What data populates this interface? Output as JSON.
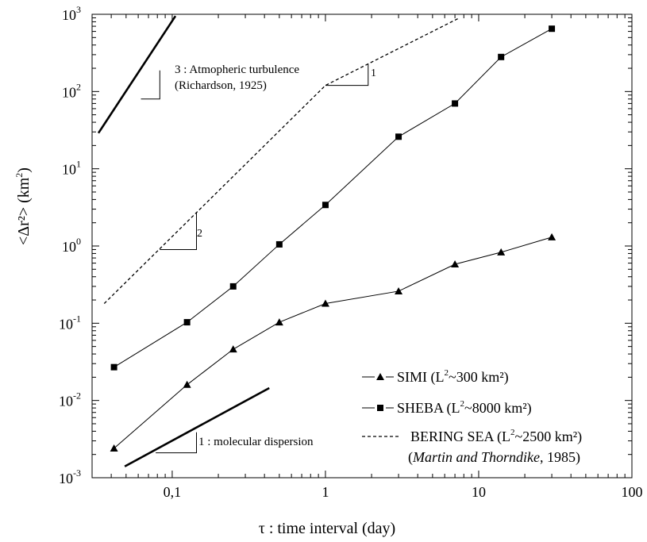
{
  "chart_data": {
    "type": "line",
    "xscale": "log",
    "yscale": "log",
    "xlim": [
      0.03,
      100
    ],
    "ylim": [
      0.001,
      1000
    ],
    "grid": false,
    "xlabel": "τ : time interval (day)",
    "ylabel": "<Δr²>  (km²)",
    "xticks": [
      {
        "value": 0.1,
        "label": "0,1"
      },
      {
        "value": 1,
        "label": "1"
      },
      {
        "value": 10,
        "label": "10"
      },
      {
        "value": 100,
        "label": "100"
      }
    ],
    "yticks": [
      {
        "value": 0.001,
        "base": "10",
        "exp": "-3"
      },
      {
        "value": 0.01,
        "base": "10",
        "exp": "-2"
      },
      {
        "value": 0.1,
        "base": "10",
        "exp": "-1"
      },
      {
        "value": 1,
        "base": "10",
        "exp": "0"
      },
      {
        "value": 10,
        "base": "10",
        "exp": "1"
      },
      {
        "value": 100,
        "base": "10",
        "exp": "2"
      },
      {
        "value": 1000,
        "base": "10",
        "exp": "3"
      }
    ],
    "series": [
      {
        "name": "SIMI (L²~300 km²)",
        "marker": "triangle",
        "style": "solid",
        "x": [
          0.0417,
          0.125,
          0.25,
          0.5,
          1,
          3,
          7,
          14,
          30
        ],
        "y": [
          0.0024,
          0.016,
          0.046,
          0.103,
          0.18,
          0.26,
          0.58,
          0.83,
          1.3
        ]
      },
      {
        "name": "SHEBA (L²~8000 km²)",
        "marker": "square",
        "style": "solid",
        "x": [
          0.0417,
          0.125,
          0.25,
          0.5,
          1,
          3,
          7,
          14,
          30
        ],
        "y": [
          0.027,
          0.103,
          0.3,
          1.05,
          3.4,
          26,
          70,
          280,
          650
        ]
      },
      {
        "name": "BERING SEA (L²~2500 km²)",
        "marker": "none",
        "style": "dashed",
        "x": [
          0.036,
          1,
          7.5
        ],
        "y": [
          0.18,
          120,
          900
        ]
      }
    ],
    "reference_lines": [
      {
        "label": "3 : Atmopheric turbulence",
        "label2": "(Richardson, 1925)",
        "slope": 3,
        "x": [
          0.033,
          0.105
        ],
        "y": [
          29,
          950
        ]
      },
      {
        "label": "1 : molecular dispersion",
        "slope": 1,
        "x": [
          0.049,
          0.43
        ],
        "y": [
          0.0014,
          0.0145
        ]
      }
    ],
    "slope_triangle_labels": [
      "1",
      "2"
    ],
    "legend": {
      "position": "bottom-right",
      "entries": [
        {
          "name": "SIMI (L",
          "sup": "2",
          "rest": "~300 km²)"
        },
        {
          "name": "SHEBA (L",
          "sup": "2",
          "rest": "~8000 km²)"
        },
        {
          "name": "BERING SEA (L",
          "sup": "2",
          "rest": "~2500 km²)"
        }
      ],
      "citation_italic": "Martin and Thorndike",
      "citation_rest": ", 1985)",
      "citation_open": "("
    }
  }
}
